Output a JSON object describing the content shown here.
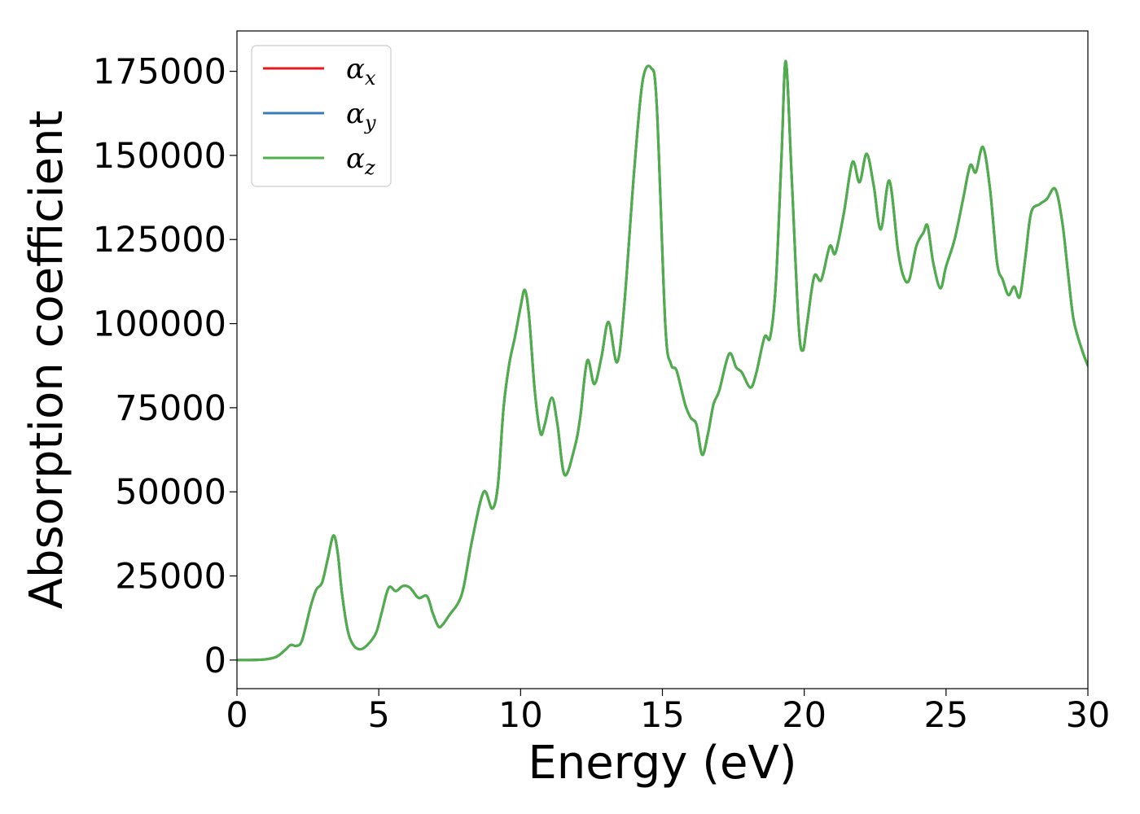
{
  "chart_data": {
    "type": "line",
    "title": "",
    "xlabel": "Energy (eV)",
    "ylabel": "Absorption coefficient",
    "xlim": [
      0,
      30
    ],
    "ylim": [
      -8500,
      187000
    ],
    "xticks": [
      0,
      5,
      10,
      15,
      20,
      25,
      30
    ],
    "yticks": [
      0,
      25000,
      50000,
      75000,
      100000,
      125000,
      150000,
      175000
    ],
    "grid": false,
    "legend_position": "top-left",
    "legend": [
      {
        "symbol": "α",
        "subscript": "x",
        "color": "#e41a1c"
      },
      {
        "symbol": "α",
        "subscript": "y",
        "color": "#377eb8"
      },
      {
        "symbol": "α",
        "subscript": "z",
        "color": "#4daf4a"
      }
    ],
    "x": [
      0,
      0.5,
      1.0,
      1.4,
      1.7,
      1.9,
      2.1,
      2.3,
      2.6,
      2.8,
      3.0,
      3.2,
      3.4,
      3.55,
      3.7,
      3.9,
      4.1,
      4.35,
      4.6,
      4.9,
      5.1,
      5.35,
      5.6,
      5.85,
      6.1,
      6.4,
      6.7,
      6.9,
      7.1,
      7.25,
      7.5,
      7.8,
      8.0,
      8.3,
      8.7,
      9.0,
      9.2,
      9.4,
      9.6,
      9.8,
      10.0,
      10.15,
      10.3,
      10.5,
      10.7,
      10.85,
      11.1,
      11.3,
      11.55,
      11.9,
      12.1,
      12.35,
      12.6,
      12.85,
      13.1,
      13.4,
      13.65,
      14.0,
      14.3,
      14.6,
      14.8,
      15.1,
      15.3,
      15.5,
      15.8,
      16.0,
      16.2,
      16.4,
      16.6,
      16.8,
      17.0,
      17.35,
      17.6,
      17.8,
      18.1,
      18.3,
      18.6,
      18.8,
      19.0,
      19.2,
      19.35,
      19.55,
      19.8,
      19.95,
      20.1,
      20.35,
      20.6,
      20.9,
      21.1,
      21.4,
      21.7,
      21.95,
      22.2,
      22.45,
      22.7,
      23.0,
      23.3,
      23.5,
      23.7,
      23.95,
      24.2,
      24.35,
      24.55,
      24.8,
      25.0,
      25.3,
      25.6,
      25.85,
      26.05,
      26.3,
      26.55,
      26.8,
      27.0,
      27.2,
      27.4,
      27.6,
      27.8,
      28.0,
      28.3,
      28.55,
      28.85,
      29.1,
      29.3,
      29.5,
      29.8,
      30.0
    ],
    "series": [
      {
        "name": "αx",
        "color": "#e41a1c",
        "values": [
          0,
          0,
          200,
          1000,
          3000,
          4500,
          4200,
          6000,
          16000,
          21000,
          23000,
          30000,
          37000,
          32000,
          20000,
          9000,
          4500,
          3200,
          4500,
          8000,
          14000,
          21500,
          20500,
          22000,
          21500,
          18500,
          19000,
          14000,
          10000,
          10500,
          13500,
          17000,
          22000,
          36000,
          50000,
          45000,
          52000,
          75000,
          88000,
          96000,
          105000,
          110000,
          102000,
          80000,
          67500,
          70000,
          78000,
          70000,
          55000,
          63000,
          72000,
          89000,
          82000,
          90000,
          100500,
          88500,
          105000,
          145000,
          172000,
          176000,
          165000,
          100000,
          88000,
          86000,
          76000,
          72000,
          70000,
          61000,
          67000,
          76000,
          80000,
          91000,
          87000,
          85500,
          81000,
          85000,
          96000,
          96000,
          112000,
          150000,
          178000,
          145000,
          100000,
          92000,
          100000,
          114000,
          113000,
          123000,
          121000,
          133000,
          148000,
          142000,
          150500,
          141000,
          128000,
          142500,
          122000,
          114000,
          113000,
          123000,
          127000,
          129000,
          118000,
          110500,
          117000,
          125000,
          137000,
          147000,
          145000,
          152500,
          140000,
          118000,
          113000,
          108500,
          111000,
          108000,
          120000,
          133000,
          135500,
          137000,
          140000,
          130000,
          115000,
          101000,
          92000,
          87500
        ]
      },
      {
        "name": "αy",
        "color": "#377eb8",
        "values": [
          0,
          0,
          200,
          1000,
          3000,
          4500,
          4200,
          6000,
          16000,
          21000,
          23000,
          30000,
          37000,
          32000,
          20000,
          9000,
          4500,
          3200,
          4500,
          8000,
          14000,
          21500,
          20500,
          22000,
          21500,
          18500,
          19000,
          14000,
          10000,
          10500,
          13500,
          17000,
          22000,
          36000,
          50000,
          45000,
          52000,
          75000,
          88000,
          96000,
          105000,
          110000,
          102000,
          80000,
          67500,
          70000,
          78000,
          70000,
          55000,
          63000,
          72000,
          89000,
          82000,
          90000,
          100500,
          88500,
          105000,
          145000,
          172000,
          176000,
          165000,
          100000,
          88000,
          86000,
          76000,
          72000,
          70000,
          61000,
          67000,
          76000,
          80000,
          91000,
          87000,
          85500,
          81000,
          85000,
          96000,
          96000,
          112000,
          150000,
          178000,
          145000,
          100000,
          92000,
          100000,
          114000,
          113000,
          123000,
          121000,
          133000,
          148000,
          142000,
          150500,
          141000,
          128000,
          142500,
          122000,
          114000,
          113000,
          123000,
          127000,
          129000,
          118000,
          110500,
          117000,
          125000,
          137000,
          147000,
          145000,
          152500,
          140000,
          118000,
          113000,
          108500,
          111000,
          108000,
          120000,
          133000,
          135500,
          137000,
          140000,
          130000,
          115000,
          101000,
          92000,
          87500
        ]
      },
      {
        "name": "αz",
        "color": "#4daf4a",
        "values": [
          0,
          0,
          200,
          1000,
          3000,
          4500,
          4200,
          6000,
          16000,
          21000,
          23000,
          30000,
          37000,
          32000,
          20000,
          9000,
          4500,
          3200,
          4500,
          8000,
          14000,
          21500,
          20500,
          22000,
          21500,
          18500,
          19000,
          14000,
          10000,
          10500,
          13500,
          17000,
          22000,
          36000,
          50000,
          45000,
          52000,
          75000,
          88000,
          96000,
          105000,
          110000,
          102000,
          80000,
          67500,
          70000,
          78000,
          70000,
          55000,
          63000,
          72000,
          89000,
          82000,
          90000,
          100500,
          88500,
          105000,
          145000,
          172000,
          176000,
          165000,
          100000,
          88000,
          86000,
          76000,
          72000,
          70000,
          61000,
          67000,
          76000,
          80000,
          91000,
          87000,
          85500,
          81000,
          85000,
          96000,
          96000,
          112000,
          150000,
          178000,
          145000,
          100000,
          92000,
          100000,
          114000,
          113000,
          123000,
          121000,
          133000,
          148000,
          142000,
          150500,
          141000,
          128000,
          142500,
          122000,
          114000,
          113000,
          123000,
          127000,
          129000,
          118000,
          110500,
          117000,
          125000,
          137000,
          147000,
          145000,
          152500,
          140000,
          118000,
          113000,
          108500,
          111000,
          108000,
          120000,
          133000,
          135500,
          137000,
          140000,
          130000,
          115000,
          101000,
          92000,
          87500
        ]
      }
    ]
  }
}
